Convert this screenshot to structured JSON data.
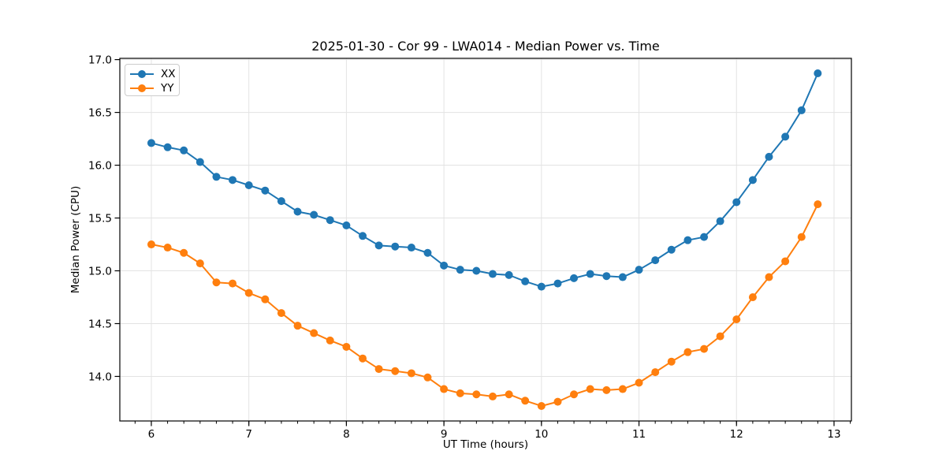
{
  "chart_data": {
    "type": "line",
    "title": "2025-01-30 - Cor 99 - LWA014 - Median Power vs. Time",
    "xlabel": "UT Time (hours)",
    "ylabel": "Median Power (CPU)",
    "xlim": [
      5.677,
      13.178
    ],
    "ylim": [
      13.578,
      17.012
    ],
    "xticks": [
      6,
      7,
      8,
      9,
      10,
      11,
      12,
      13
    ],
    "yticks": [
      14.0,
      14.5,
      15.0,
      15.5,
      16.0,
      16.5,
      17.0
    ],
    "ytick_labels": [
      "14.0",
      "14.5",
      "15.0",
      "15.5",
      "16.0",
      "16.5",
      "17.0"
    ],
    "minor_xtick_step": 0.166667,
    "grid": true,
    "grid_color": "#e3e3e3",
    "spine_color": "#000000",
    "background_color": "#ffffff",
    "legend_position": "upper-left",
    "x": [
      6.0,
      6.167,
      6.333,
      6.5,
      6.667,
      6.833,
      7.0,
      7.167,
      7.333,
      7.5,
      7.667,
      7.833,
      8.0,
      8.167,
      8.333,
      8.5,
      8.667,
      8.833,
      9.0,
      9.167,
      9.333,
      9.5,
      9.667,
      9.833,
      10.0,
      10.167,
      10.333,
      10.5,
      10.667,
      10.833,
      11.0,
      11.167,
      11.333,
      11.5,
      11.667,
      11.833,
      12.0,
      12.167,
      12.333,
      12.5,
      12.667,
      12.833
    ],
    "series": [
      {
        "name": "XX",
        "color": "#1f77b4",
        "values": [
          16.21,
          16.17,
          16.14,
          16.03,
          15.89,
          15.86,
          15.81,
          15.76,
          15.66,
          15.56,
          15.53,
          15.48,
          15.43,
          15.33,
          15.24,
          15.23,
          15.22,
          15.17,
          15.05,
          15.01,
          15.0,
          14.97,
          14.96,
          14.9,
          14.85,
          14.88,
          14.93,
          14.97,
          14.95,
          14.94,
          15.01,
          15.1,
          15.2,
          15.29,
          15.32,
          15.47,
          15.65,
          15.86,
          16.08,
          16.27,
          16.52,
          16.87
        ]
      },
      {
        "name": "YY",
        "color": "#ff7f0e",
        "values": [
          15.25,
          15.22,
          15.17,
          15.07,
          14.89,
          14.88,
          14.79,
          14.73,
          14.6,
          14.48,
          14.41,
          14.34,
          14.28,
          14.17,
          14.07,
          14.05,
          14.03,
          13.99,
          13.88,
          13.84,
          13.83,
          13.81,
          13.83,
          13.77,
          13.72,
          13.76,
          13.83,
          13.88,
          13.87,
          13.88,
          13.94,
          14.04,
          14.14,
          14.23,
          14.26,
          14.38,
          14.54,
          14.75,
          14.94,
          15.09,
          15.32,
          15.63
        ]
      }
    ]
  }
}
